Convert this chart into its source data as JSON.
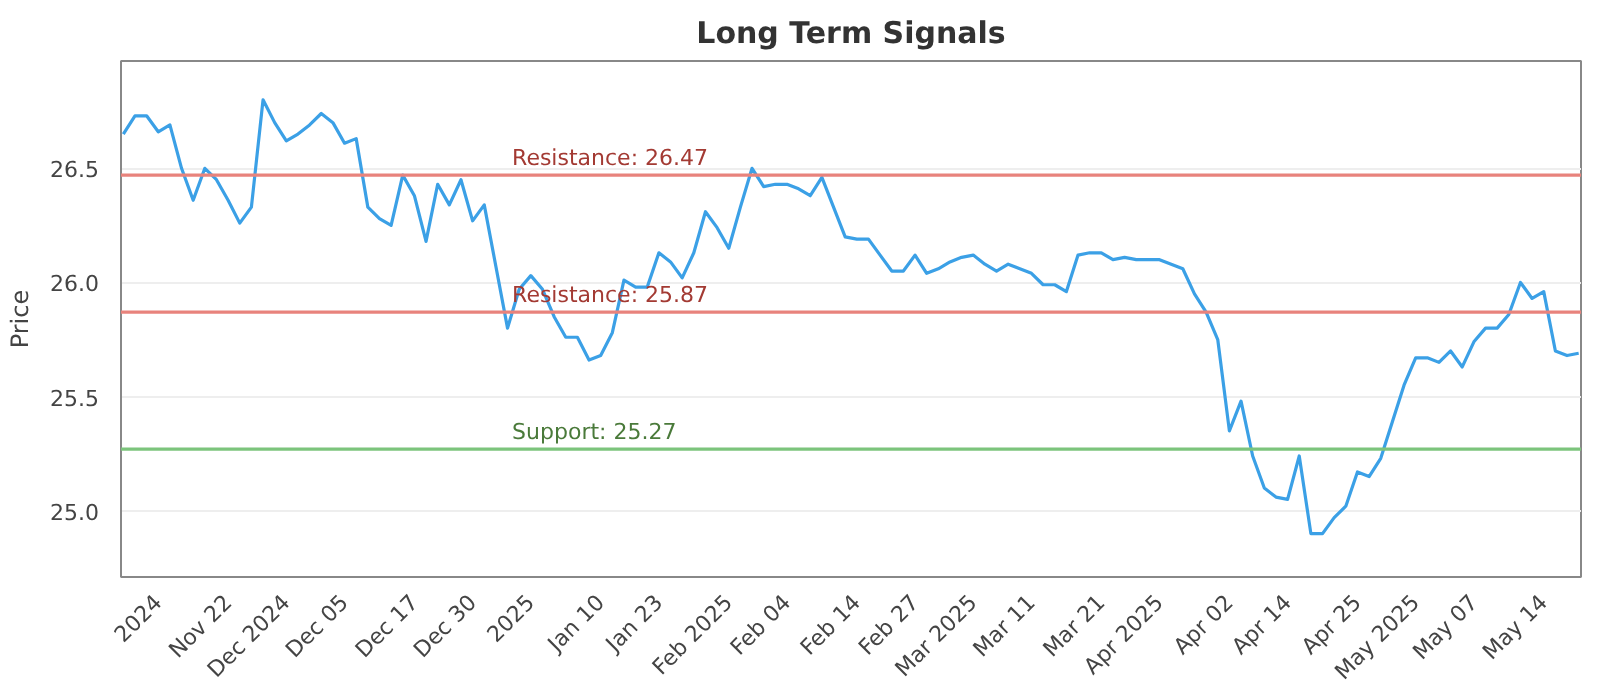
{
  "chart_data": {
    "type": "line",
    "title": "Long Term Signals",
    "ylabel": "Price",
    "categories": [
      null,
      null,
      null,
      "2024",
      null,
      null,
      null,
      null,
      null,
      "Nov 22",
      null,
      null,
      null,
      null,
      "Dec 2024",
      null,
      null,
      null,
      null,
      "Dec 05",
      null,
      null,
      null,
      null,
      null,
      "Dec 17",
      null,
      null,
      null,
      null,
      "Dec 30",
      null,
      null,
      null,
      null,
      "2025",
      null,
      null,
      null,
      null,
      null,
      "Jan 10",
      null,
      null,
      null,
      null,
      "Jan 23",
      null,
      null,
      null,
      null,
      null,
      "Feb 2025",
      null,
      null,
      null,
      null,
      "Feb 04",
      null,
      null,
      null,
      null,
      null,
      "Feb 14",
      null,
      null,
      null,
      null,
      "Feb 27",
      null,
      null,
      null,
      null,
      "Mar 2025",
      null,
      null,
      null,
      null,
      "Mar 11",
      null,
      null,
      null,
      null,
      null,
      "Mar 21",
      null,
      null,
      null,
      null,
      "Apr 2025",
      null,
      null,
      null,
      null,
      null,
      "Apr 02",
      null,
      null,
      null,
      null,
      "Apr 14",
      null,
      null,
      null,
      null,
      null,
      "Apr 25",
      null,
      null,
      null,
      null,
      "May 2025",
      null,
      null,
      null,
      null,
      "May 07",
      null,
      null,
      null,
      null,
      null,
      "May 14",
      null,
      null,
      null
    ],
    "series": [
      {
        "color": "#3ba0e6",
        "values": [
          26.65,
          26.73,
          26.73,
          26.66,
          26.69,
          26.5,
          26.36,
          26.5,
          26.45,
          26.36,
          26.26,
          26.33,
          26.8,
          26.7,
          26.62,
          26.65,
          26.69,
          26.74,
          26.7,
          26.61,
          26.63,
          26.33,
          26.28,
          26.25,
          26.47,
          26.38,
          26.18,
          26.43,
          26.34,
          26.45,
          26.27,
          26.34,
          26.07,
          25.8,
          25.97,
          26.03,
          25.97,
          25.85,
          25.76,
          25.76,
          25.66,
          25.68,
          25.78,
          26.01,
          25.98,
          25.98,
          26.13,
          26.09,
          26.02,
          26.13,
          26.31,
          26.24,
          26.15,
          26.33,
          26.5,
          26.42,
          26.43,
          26.43,
          26.41,
          26.38,
          26.46,
          26.33,
          26.2,
          26.19,
          26.19,
          26.12,
          26.05,
          26.05,
          26.12,
          26.04,
          26.06,
          26.09,
          26.11,
          26.12,
          26.08,
          26.05,
          26.08,
          26.06,
          26.04,
          25.99,
          25.99,
          25.96,
          26.12,
          26.13,
          26.13,
          26.1,
          26.11,
          26.1,
          26.1,
          26.1,
          26.08,
          26.06,
          25.95,
          25.87,
          25.75,
          25.35,
          25.48,
          25.24,
          25.1,
          25.06,
          25.05,
          25.24,
          24.9,
          24.9,
          24.97,
          25.02,
          25.17,
          25.15,
          25.23,
          25.39,
          25.55,
          25.67,
          25.67,
          25.65,
          25.7,
          25.63,
          25.74,
          25.8,
          25.8,
          25.86,
          26.0,
          25.93,
          25.96,
          25.7,
          25.68,
          25.69
        ]
      }
    ],
    "ylim": [
      24.71,
      26.97
    ],
    "yticks": [
      {
        "value": 25.0,
        "label": "25.0"
      },
      {
        "value": 25.5,
        "label": "25.5"
      },
      {
        "value": 26.0,
        "label": "26.0"
      },
      {
        "value": 26.5,
        "label": "26.5"
      }
    ],
    "grid": "y",
    "marker": "none",
    "line_style": "solid",
    "ref_lines": [
      {
        "axis": "y",
        "value": 26.47,
        "label": "Resistance: 26.47",
        "color": "#e8837c"
      },
      {
        "axis": "y",
        "value": 25.87,
        "label": "Resistance: 25.87",
        "color": "#e8837c"
      },
      {
        "axis": "y",
        "value": 25.27,
        "label": "Support: 25.27",
        "color": "#7cc47c"
      }
    ]
  }
}
